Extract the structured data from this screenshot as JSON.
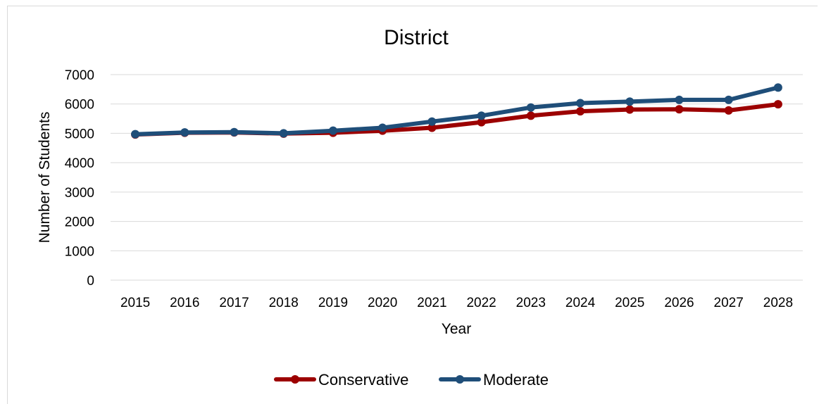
{
  "chart_data": {
    "type": "line",
    "title": "District",
    "xlabel": "Year",
    "ylabel": "Number of Students",
    "categories": [
      "2015",
      "2016",
      "2017",
      "2018",
      "2019",
      "2020",
      "2021",
      "2022",
      "2023",
      "2024",
      "2025",
      "2026",
      "2027",
      "2028"
    ],
    "ylim": [
      0,
      7000
    ],
    "yticks": [
      "0",
      "1000",
      "2000",
      "3000",
      "4000",
      "5000",
      "6000",
      "7000"
    ],
    "grid": true,
    "legend_position": "bottom",
    "series": [
      {
        "name": "Conservative",
        "color": "#9c0000",
        "values": [
          4960,
          5020,
          5030,
          4990,
          5020,
          5090,
          5190,
          5380,
          5600,
          5750,
          5810,
          5820,
          5780,
          5990
        ]
      },
      {
        "name": "Moderate",
        "color": "#1f4e79",
        "values": [
          4970,
          5030,
          5040,
          5000,
          5090,
          5190,
          5400,
          5600,
          5880,
          6030,
          6080,
          6140,
          6140,
          6560
        ]
      }
    ]
  }
}
